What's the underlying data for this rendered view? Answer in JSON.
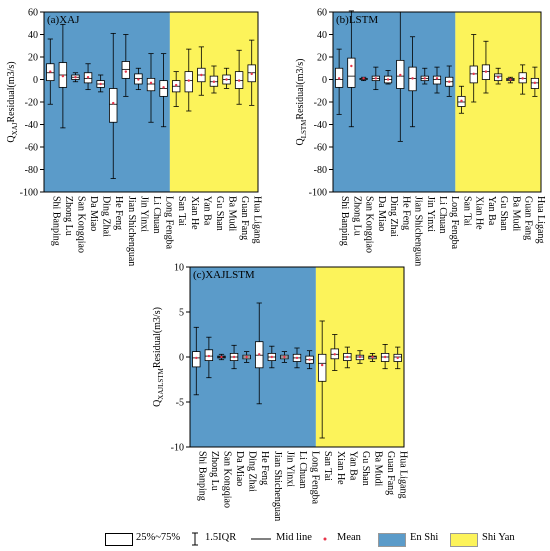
{
  "colors": {
    "en_shi": "#5b9bc9",
    "shi_yan": "#fcf35a",
    "box": "#ffffff",
    "mean": "#e8344a",
    "median": "#000000"
  },
  "legend": {
    "box_label": "25%~75%",
    "whisker_label": "1.5IQR",
    "mid_label": "Mid line",
    "mean_label": "Mean",
    "en_shi_label": "En Shi",
    "shi_yan_label": "Shi Yan"
  },
  "chart_data": [
    {
      "type": "box",
      "title": "(a)XAJ",
      "ylabel": "Q_XAJ Residual(m3/s)",
      "ylabel_sub": "XAJ",
      "ylim": [
        -100,
        60
      ],
      "yticks": [
        -100,
        -80,
        -60,
        -40,
        -20,
        0,
        20,
        40,
        60
      ],
      "categories": [
        "Shi Banping",
        "Zhong Lu",
        "San Kongqiao",
        "Da Miao",
        "Ding Zhai",
        "He Feng",
        "Jian Shichenguan",
        "Jin Yinxi",
        "Li Chuan",
        "Long Fengba",
        "San Tai",
        "Xian He",
        "Yan Ba",
        "Gu Shan",
        "Ba Mudi",
        "Guan Fang",
        "Hua Ligang"
      ],
      "region": [
        "En Shi",
        "En Shi",
        "En Shi",
        "En Shi",
        "En Shi",
        "En Shi",
        "En Shi",
        "En Shi",
        "En Shi",
        "En Shi",
        "Shi Yan",
        "Shi Yan",
        "Shi Yan",
        "Shi Yan",
        "Shi Yan",
        "Shi Yan",
        "Shi Yan"
      ],
      "boxes": [
        {
          "whisker_low": -22,
          "q1": -1,
          "median": 6,
          "q3": 14,
          "whisker_high": 36,
          "mean": 7
        },
        {
          "whisker_low": -43,
          "q1": -7,
          "median": 4,
          "q3": 15,
          "whisker_high": 49,
          "mean": 3
        },
        {
          "whisker_low": -2,
          "q1": 0,
          "median": 2,
          "q3": 4,
          "whisker_high": 6,
          "mean": 2
        },
        {
          "whisker_low": -9,
          "q1": -3,
          "median": 1,
          "q3": 6,
          "whisker_high": 14,
          "mean": 2
        },
        {
          "whisker_low": -11,
          "q1": -7,
          "median": -4,
          "q3": -1,
          "whisker_high": 4,
          "mean": -4
        },
        {
          "whisker_low": -88,
          "q1": -38,
          "median": -22,
          "q3": -8,
          "whisker_high": 41,
          "mean": -21
        },
        {
          "whisker_low": -15,
          "q1": 1,
          "median": 9,
          "q3": 16,
          "whisker_high": 40,
          "mean": 7
        },
        {
          "whisker_low": -9,
          "q1": -4,
          "median": 1,
          "q3": 5,
          "whisker_high": 10,
          "mean": 0
        },
        {
          "whisker_low": -38,
          "q1": -10,
          "median": -4,
          "q3": 1,
          "whisker_high": 23,
          "mean": -3
        },
        {
          "whisker_low": -42,
          "q1": -15,
          "median": -8,
          "q3": -1,
          "whisker_high": 23,
          "mean": -7
        },
        {
          "whisker_low": -24,
          "q1": -11,
          "median": -6,
          "q3": -1,
          "whisker_high": 7,
          "mean": -5
        },
        {
          "whisker_low": -28,
          "q1": -11,
          "median": -1,
          "q3": 7,
          "whisker_high": 27,
          "mean": -1
        },
        {
          "whisker_low": -14,
          "q1": -2,
          "median": 4,
          "q3": 10,
          "whisker_high": 29,
          "mean": 4
        },
        {
          "whisker_low": -12,
          "q1": -6,
          "median": -2,
          "q3": 3,
          "whisker_high": 12,
          "mean": -2
        },
        {
          "whisker_low": -8,
          "q1": -4,
          "median": 0,
          "q3": 4,
          "whisker_high": 10,
          "mean": 0
        },
        {
          "whisker_low": -22,
          "q1": -8,
          "median": -1,
          "q3": 7,
          "whisker_high": 26,
          "mean": -1
        },
        {
          "whisker_low": -23,
          "q1": -2,
          "median": 6,
          "q3": 13,
          "whisker_high": 35,
          "mean": 5
        }
      ]
    },
    {
      "type": "box",
      "title": "(b)LSTM",
      "ylabel": "Q_LSTM Residual(m3/s)",
      "ylabel_sub": "LSTM",
      "ylim": [
        -100,
        60
      ],
      "yticks": [
        -100,
        -80,
        -60,
        -40,
        -20,
        0,
        20,
        40,
        60
      ],
      "categories": [
        "Shi Banping",
        "Zhong Lu",
        "San Kongqiao",
        "Da Miao",
        "Ding Zhai",
        "He Feng",
        "Jian Shichenguan",
        "Jin Yinxi",
        "Li Chuan",
        "Long Fengba",
        "San Tai",
        "Xian He",
        "Yan Ba",
        "Gu Shan",
        "Ba Mudi",
        "Guan Fang",
        "Hua Ligang"
      ],
      "region": [
        "En Shi",
        "En Shi",
        "En Shi",
        "En Shi",
        "En Shi",
        "En Shi",
        "En Shi",
        "En Shi",
        "En Shi",
        "En Shi",
        "Shi Yan",
        "Shi Yan",
        "Shi Yan",
        "Shi Yan",
        "Shi Yan",
        "Shi Yan",
        "Shi Yan"
      ],
      "boxes": [
        {
          "whisker_low": -31,
          "q1": -7,
          "median": 0,
          "q3": 10,
          "whisker_high": 27,
          "mean": 1
        },
        {
          "whisker_low": -42,
          "q1": -7,
          "median": 3,
          "q3": 19,
          "whisker_high": 61,
          "mean": 12
        },
        {
          "whisker_low": -1,
          "q1": 0,
          "median": 1,
          "q3": 1,
          "whisker_high": 2,
          "mean": 1
        },
        {
          "whisker_low": -9,
          "q1": -1,
          "median": 1,
          "q3": 3,
          "whisker_high": 11,
          "mean": 1
        },
        {
          "whisker_low": -4,
          "q1": -3,
          "median": 0,
          "q3": 3,
          "whisker_high": 8,
          "mean": 0
        },
        {
          "whisker_low": -55,
          "q1": -8,
          "median": 3,
          "q3": 17,
          "whisker_high": 60,
          "mean": 4
        },
        {
          "whisker_low": -42,
          "q1": -10,
          "median": 1,
          "q3": 11,
          "whisker_high": 38,
          "mean": 1
        },
        {
          "whisker_low": -4,
          "q1": -1,
          "median": 1,
          "q3": 3,
          "whisker_high": 10,
          "mean": 1
        },
        {
          "whisker_low": -12,
          "q1": -4,
          "median": 0,
          "q3": 3,
          "whisker_high": 11,
          "mean": 1
        },
        {
          "whisker_low": -15,
          "q1": -6,
          "median": -2,
          "q3": 2,
          "whisker_high": 12,
          "mean": -2
        },
        {
          "whisker_low": -30,
          "q1": -24,
          "median": -20,
          "q3": -15,
          "whisker_high": -6,
          "mean": -19
        },
        {
          "whisker_low": -20,
          "q1": -3,
          "median": 5,
          "q3": 12,
          "whisker_high": 40,
          "mean": 5
        },
        {
          "whisker_low": -12,
          "q1": 0,
          "median": 7,
          "q3": 13,
          "whisker_high": 34,
          "mean": 7
        },
        {
          "whisker_low": -4,
          "q1": -1,
          "median": 3,
          "q3": 5,
          "whisker_high": 10,
          "mean": 2
        },
        {
          "whisker_low": -3,
          "q1": -1,
          "median": 0,
          "q3": 1,
          "whisker_high": 2,
          "mean": 0
        },
        {
          "whisker_low": -13,
          "q1": -3,
          "median": 1,
          "q3": 6,
          "whisker_high": 13,
          "mean": 1
        },
        {
          "whisker_low": -15,
          "q1": -8,
          "median": -3,
          "q3": 1,
          "whisker_high": 11,
          "mean": -3
        }
      ]
    },
    {
      "type": "box",
      "title": "(c)XAJLSTM",
      "ylabel": "Q_XAJLSTM Residual(m3/s)",
      "ylabel_sub": "XAJLSTM",
      "ylim": [
        -10,
        10
      ],
      "yticks": [
        -10,
        -5,
        0,
        5,
        10
      ],
      "categories": [
        "Shi Banping",
        "Zhong Lu",
        "San Kongqiao",
        "Da Miao",
        "Ding Zhai",
        "He Feng",
        "Jian Shichenguan",
        "Jin Yinxi",
        "Li Chuan",
        "Long Fengba",
        "San Tai",
        "Xian He",
        "Yan Ba",
        "Gu Shan",
        "Ba Mudi",
        "Guan Fang",
        "Hua Ligang"
      ],
      "region": [
        "En Shi",
        "En Shi",
        "En Shi",
        "En Shi",
        "En Shi",
        "En Shi",
        "En Shi",
        "En Shi",
        "En Shi",
        "En Shi",
        "Shi Yan",
        "Shi Yan",
        "Shi Yan",
        "Shi Yan",
        "Shi Yan",
        "Shi Yan",
        "Shi Yan"
      ],
      "boxes": [
        {
          "whisker_low": -4.2,
          "q1": -1.1,
          "median": -0.1,
          "q3": 0.6,
          "whisker_high": 3.3,
          "mean": -0.1
        },
        {
          "whisker_low": -2.3,
          "q1": -0.4,
          "median": 0.1,
          "q3": 0.8,
          "whisker_high": 2.2,
          "mean": 0.1
        },
        {
          "whisker_low": -0.3,
          "q1": -0.1,
          "median": 0,
          "q3": 0.1,
          "whisker_high": 0.3,
          "mean": 0
        },
        {
          "whisker_low": -1.3,
          "q1": -0.4,
          "median": 0,
          "q3": 0.4,
          "whisker_high": 1.3,
          "mean": 0
        },
        {
          "whisker_low": -0.6,
          "q1": -0.2,
          "median": 0,
          "q3": 0.2,
          "whisker_high": 0.6,
          "mean": 0
        },
        {
          "whisker_low": -5.2,
          "q1": -1.2,
          "median": 0.2,
          "q3": 1.7,
          "whisker_high": 6.0,
          "mean": 0.3
        },
        {
          "whisker_low": -1.2,
          "q1": -0.4,
          "median": 0,
          "q3": 0.4,
          "whisker_high": 1.2,
          "mean": 0
        },
        {
          "whisker_low": -0.6,
          "q1": -0.2,
          "median": 0,
          "q3": 0.2,
          "whisker_high": 0.6,
          "mean": 0
        },
        {
          "whisker_low": -1.2,
          "q1": -0.5,
          "median": -0.1,
          "q3": 0.3,
          "whisker_high": 1.0,
          "mean": -0.1
        },
        {
          "whisker_low": -1.3,
          "q1": -0.7,
          "median": -0.3,
          "q3": 0.1,
          "whisker_high": 0.7,
          "mean": -0.3
        },
        {
          "whisker_low": -9.0,
          "q1": -2.7,
          "median": -0.7,
          "q3": 0.3,
          "whisker_high": 4.0,
          "mean": -0.9
        },
        {
          "whisker_low": -1.5,
          "q1": -0.2,
          "median": 0.3,
          "q3": 0.9,
          "whisker_high": 2.5,
          "mean": 0.3
        },
        {
          "whisker_low": -1.2,
          "q1": -0.4,
          "median": 0,
          "q3": 0.4,
          "whisker_high": 1.1,
          "mean": 0
        },
        {
          "whisker_low": -0.7,
          "q1": -0.3,
          "median": 0,
          "q3": 0.2,
          "whisker_high": 0.7,
          "mean": 0
        },
        {
          "whisker_low": -0.5,
          "q1": -0.2,
          "median": 0,
          "q3": 0.1,
          "whisker_high": 0.4,
          "mean": 0
        },
        {
          "whisker_low": -1.3,
          "q1": -0.5,
          "median": 0,
          "q3": 0.4,
          "whisker_high": 1.4,
          "mean": 0
        },
        {
          "whisker_low": -1.3,
          "q1": -0.5,
          "median": 0,
          "q3": 0.3,
          "whisker_high": 1.1,
          "mean": -0.1
        }
      ]
    }
  ]
}
